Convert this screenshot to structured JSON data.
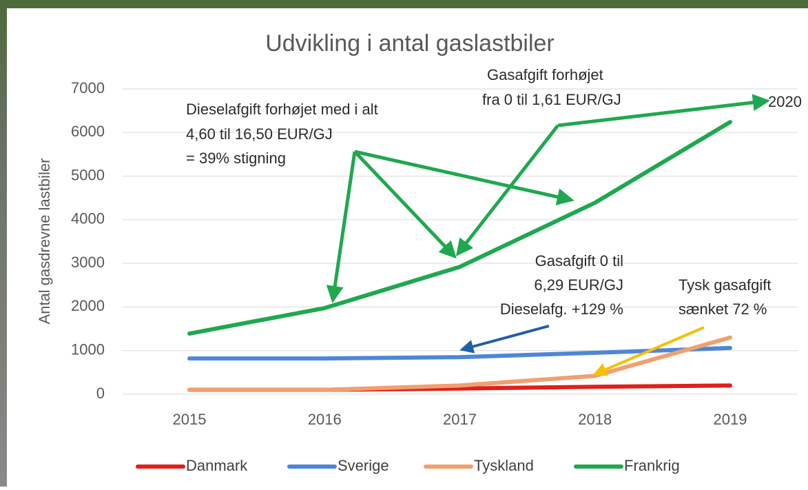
{
  "chart_data": {
    "type": "line",
    "title": "Udvikling i antal gaslastbiler",
    "y_label": "Antal gasdrevne lastbiler",
    "categories": [
      "2015",
      "2016",
      "2017",
      "2018",
      "2019"
    ],
    "series": [
      {
        "name": "Danmark",
        "color": "#e0201b",
        "values": [
          100,
          100,
          130,
          170,
          200
        ]
      },
      {
        "name": "Sverige",
        "color": "#4f86d6",
        "values": [
          820,
          820,
          850,
          950,
          1060
        ]
      },
      {
        "name": "Tyskland",
        "color": "#f0a070",
        "values": [
          100,
          100,
          200,
          420,
          1300
        ]
      },
      {
        "name": "Frankrig",
        "color": "#1fa84f",
        "values": [
          1390,
          1975,
          2920,
          4390,
          6240
        ]
      }
    ],
    "ylim": [
      0,
      7000
    ],
    "yticks": [
      0,
      1000,
      2000,
      3000,
      4000,
      5000,
      6000,
      7000
    ],
    "grid": true,
    "legend": "bottom",
    "annotations": [
      "Dieselafgift forhøjet med i alt",
      "4,60 til 16,50 EUR/GJ",
      "= 39% stigning",
      "Gasafgift forhøjet",
      "fra 0 til 1,61 EUR/GJ",
      "2020",
      "Gasafgift 0 til",
      "6,29 EUR/GJ",
      "Dieselafg. +129 %",
      "Tysk gasafgift",
      "sænket 72 %"
    ]
  }
}
